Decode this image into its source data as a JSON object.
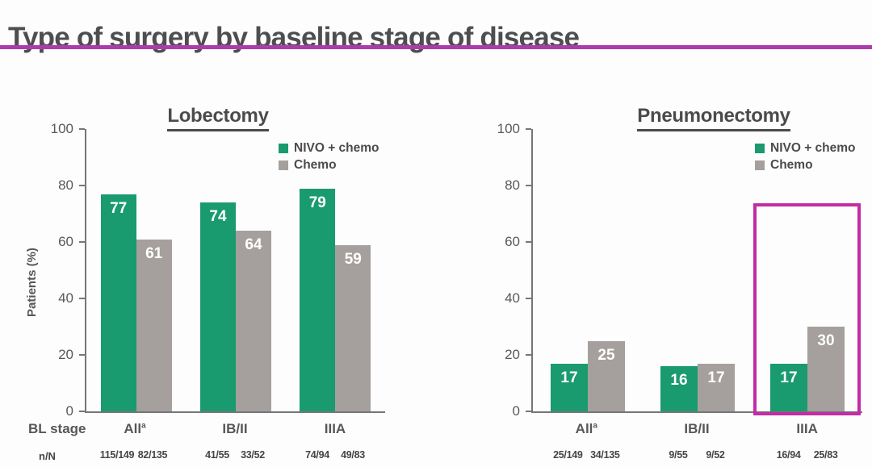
{
  "slide": {
    "title": "Type of surgery by baseline stage of disease",
    "accent_color": "#ab3dab"
  },
  "chart_data": [
    {
      "type": "bar",
      "title": "Lobectomy",
      "ylabel": "Patients (%)",
      "ylim": [
        0,
        100
      ],
      "yticks": [
        0,
        20,
        40,
        60,
        80,
        100
      ],
      "grid": false,
      "legend_position": "top-right",
      "categories": [
        "All",
        "IB/II",
        "IIIA"
      ],
      "category_sup": [
        "a",
        "",
        ""
      ],
      "row_labels": {
        "stage": "BL stage",
        "n": "n/N"
      },
      "series": [
        {
          "name": "NIVO + chemo",
          "color": "#1a9a6f",
          "values": [
            77,
            74,
            79
          ],
          "n_over_N": [
            "115/149",
            "41/55",
            "74/94"
          ]
        },
        {
          "name": "Chemo",
          "color": "#a5a09d",
          "values": [
            61,
            64,
            59
          ],
          "n_over_N": [
            "82/135",
            "33/52",
            "49/83"
          ]
        }
      ],
      "highlight": null
    },
    {
      "type": "bar",
      "title": "Pneumonectomy",
      "ylabel": "",
      "ylim": [
        0,
        100
      ],
      "yticks": [
        0,
        20,
        40,
        60,
        80,
        100
      ],
      "grid": false,
      "legend_position": "top-right",
      "categories": [
        "All",
        "IB/II",
        "IIIA"
      ],
      "category_sup": [
        "a",
        "",
        ""
      ],
      "series": [
        {
          "name": "NIVO + chemo",
          "color": "#1a9a6f",
          "values": [
            17,
            16,
            17
          ],
          "n_over_N": [
            "25/149",
            "9/55",
            "16/94"
          ]
        },
        {
          "name": "Chemo",
          "color": "#a5a09d",
          "values": [
            25,
            17,
            30
          ],
          "n_over_N": [
            "34/135",
            "9/52",
            "25/83"
          ]
        }
      ],
      "highlight": {
        "category": "IIIA",
        "color": "#c22ca4"
      }
    }
  ]
}
